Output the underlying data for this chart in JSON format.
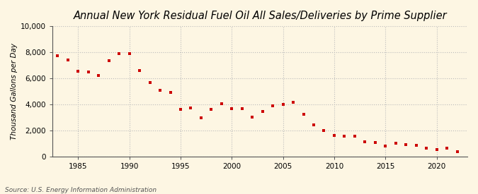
{
  "title": "Annual New York Residual Fuel Oil All Sales/Deliveries by Prime Supplier",
  "ylabel": "Thousand Gallons per Day",
  "source": "Source: U.S. Energy Information Administration",
  "background_color": "#fdf6e3",
  "plot_bg_color": "#fdf6e3",
  "marker_color": "#cc0000",
  "xlim": [
    1982.5,
    2023
  ],
  "ylim": [
    0,
    10000
  ],
  "yticks": [
    0,
    2000,
    4000,
    6000,
    8000,
    10000
  ],
  "xticks": [
    1985,
    1990,
    1995,
    2000,
    2005,
    2010,
    2015,
    2020
  ],
  "years": [
    1983,
    1984,
    1985,
    1986,
    1987,
    1988,
    1989,
    1990,
    1991,
    1992,
    1993,
    1994,
    1995,
    1996,
    1997,
    1998,
    1999,
    2000,
    2001,
    2002,
    2003,
    2004,
    2005,
    2006,
    2007,
    2008,
    2009,
    2010,
    2011,
    2012,
    2013,
    2014,
    2015,
    2016,
    2017,
    2018,
    2019,
    2020,
    2021,
    2022
  ],
  "values": [
    7730,
    7370,
    6530,
    6490,
    6180,
    7350,
    7900,
    7850,
    6560,
    5640,
    5050,
    4930,
    3620,
    3730,
    2980,
    3630,
    4040,
    3680,
    3670,
    2990,
    3450,
    3870,
    3980,
    4170,
    3230,
    2440,
    2010,
    1620,
    1530,
    1550,
    1130,
    1060,
    800,
    1010,
    930,
    850,
    630,
    520,
    660,
    360
  ],
  "title_fontsize": 10.5,
  "ylabel_fontsize": 7.5,
  "tick_fontsize": 7.5,
  "source_fontsize": 6.5
}
